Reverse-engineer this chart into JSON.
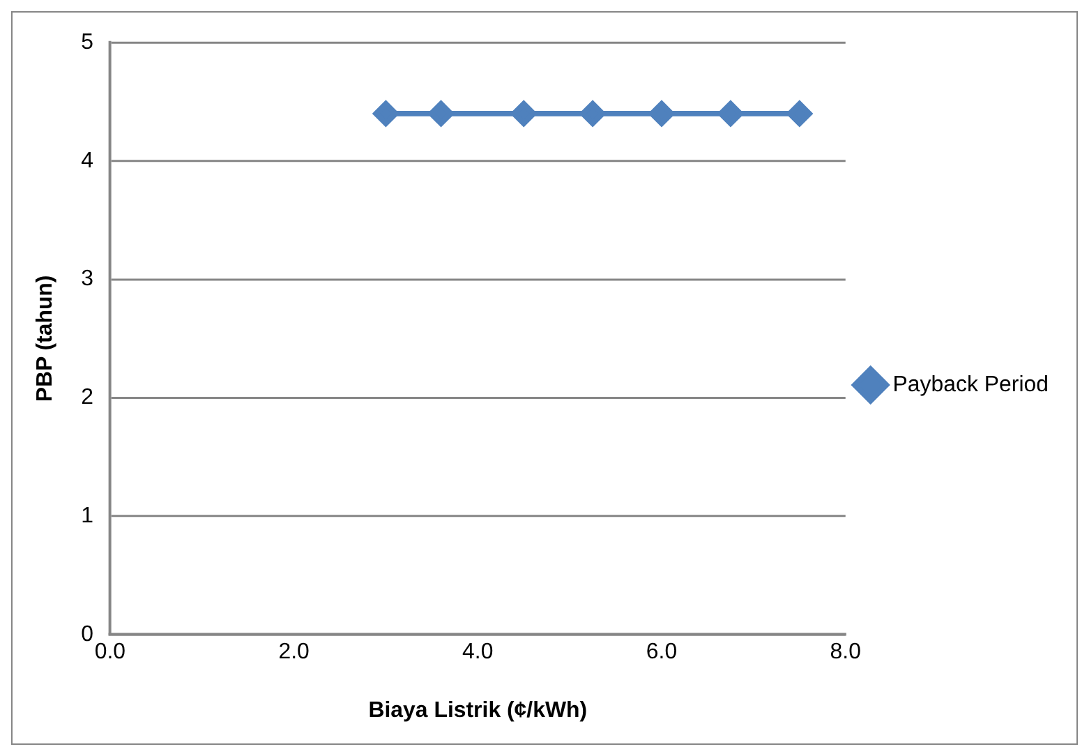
{
  "chart_data": {
    "type": "line",
    "xlabel": "Biaya Listrik (¢/kWh)",
    "ylabel": "PBP (tahun)",
    "x": [
      3.0,
      3.6,
      4.5,
      5.25,
      6.0,
      6.75,
      7.5
    ],
    "series": [
      {
        "name": "Payback Period",
        "color": "#4f81bd",
        "values": [
          4.4,
          4.4,
          4.4,
          4.4,
          4.4,
          4.4,
          4.4
        ]
      }
    ],
    "xlim": [
      0,
      8
    ],
    "xticks": [
      {
        "value": 0,
        "label": "0.0"
      },
      {
        "value": 2,
        "label": "2.0"
      },
      {
        "value": 4,
        "label": "4.0"
      },
      {
        "value": 6,
        "label": "6.0"
      },
      {
        "value": 8,
        "label": "8.0"
      }
    ],
    "ylim": [
      0,
      5
    ],
    "yticks": [
      0,
      1,
      2,
      3,
      4,
      5
    ],
    "grid": "y",
    "legend": "right",
    "marker": "diamond",
    "line_style": "solid"
  }
}
